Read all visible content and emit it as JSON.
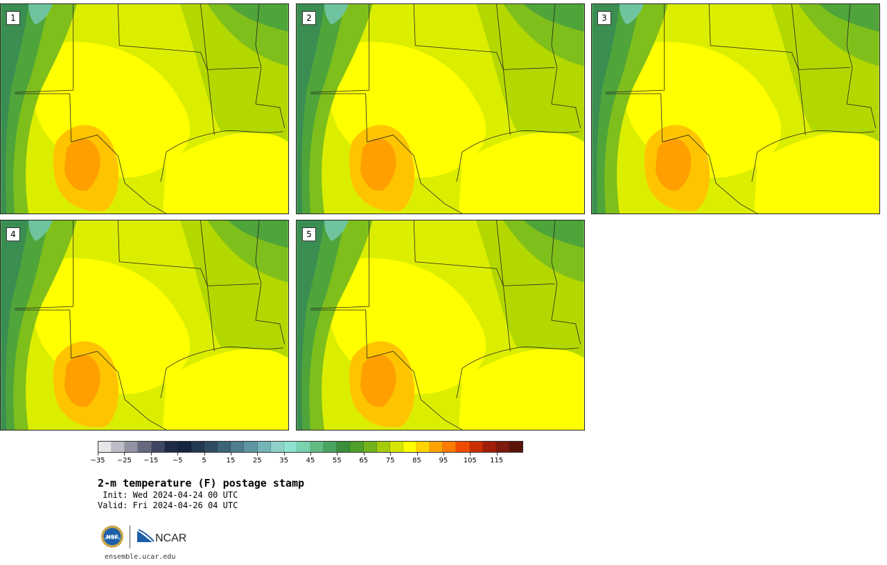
{
  "panels": [
    {
      "label": "1"
    },
    {
      "label": "2"
    },
    {
      "label": "3"
    },
    {
      "label": "4"
    },
    {
      "label": "5"
    }
  ],
  "colorbar": {
    "colors": [
      "#e6e6ea",
      "#bdbdc8",
      "#9394a3",
      "#66697f",
      "#3e4663",
      "#1c2a48",
      "#152540",
      "#23394f",
      "#2f4d61",
      "#3c6478",
      "#4d7d8e",
      "#5f96a1",
      "#74b4b7",
      "#8fd0c9",
      "#8de3cf",
      "#79d3ae",
      "#61bb83",
      "#4aa461",
      "#3b8e3a",
      "#4f9f2a",
      "#72b21c",
      "#a4cc08",
      "#d7e604",
      "#ffff00",
      "#ffd400",
      "#ffa200",
      "#ff7a00",
      "#f04c00",
      "#c92f00",
      "#a11f0a",
      "#7d190d",
      "#5a1407"
    ],
    "ticks": [
      "−35",
      "−25",
      "−15",
      "−5",
      "5",
      "15",
      "25",
      "35",
      "45",
      "55",
      "65",
      "75",
      "85",
      "95",
      "105",
      "115"
    ]
  },
  "title": "2-m temperature (F) postage stamp",
  "init": " Init: Wed 2024-04-24 00 UTC",
  "valid": "Valid: Fri 2024-04-26 04 UTC",
  "logos": {
    "nsf": "NSF",
    "ncar": "NCAR"
  },
  "site": "ensemble.ucar.edu",
  "map_colors": {
    "base": "#dcee00",
    "warm": "#ffff00",
    "hot": "#ffc400",
    "hotter": "#ff9900",
    "cool": "#b3d800",
    "cooler": "#7fbf1c",
    "green": "#4fa43a",
    "dark": "#3a8e52",
    "teal": "#6fc4a0"
  }
}
